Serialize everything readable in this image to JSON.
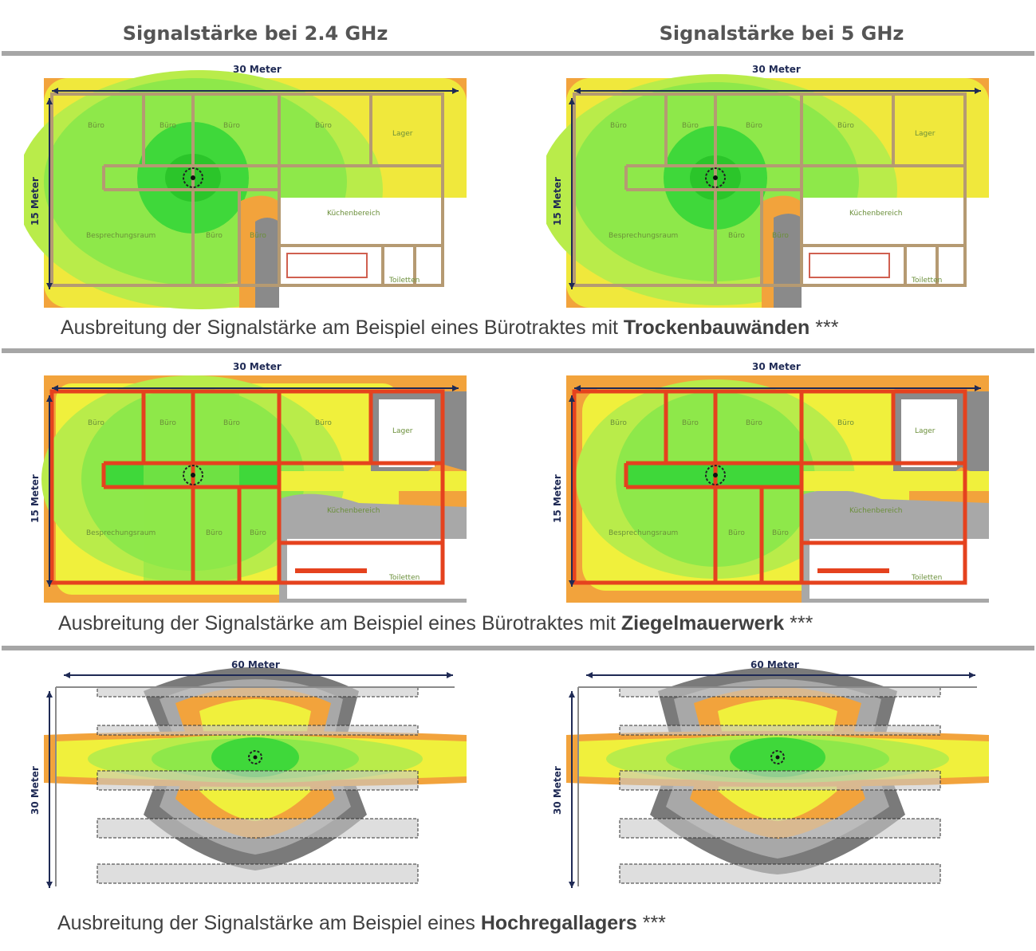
{
  "headers": {
    "left": "Signalstärke bei 2.4 GHz",
    "right": "Signalstärke bei 5 GHz"
  },
  "rows": [
    {
      "caption_prefix": "Ausbreitung der Signalstärke am Beispiel eines Bürotraktes mit ",
      "caption_bold": "Trockenbauwänden",
      "caption_suffix": " ***",
      "width_label": "30 Meter",
      "height_label": "15 Meter",
      "rooms": {
        "buero": "Büro",
        "lager": "Lager",
        "kueche": "Küchenbereich",
        "besprechung": "Besprechungsraum",
        "toiletten": "Toiletten"
      }
    },
    {
      "caption_prefix": "Ausbreitung der Signalstärke am Beispiel eines Bürotraktes mit ",
      "caption_bold": "Ziegelmauerwerk",
      "caption_suffix": " ***",
      "width_label": "30 Meter",
      "height_label": "15 Meter",
      "rooms": {
        "buero": "Büro",
        "lager": "Lager",
        "kueche": "Küchenbereich",
        "besprechung": "Besprechungsraum",
        "toiletten": "Toiletten"
      }
    },
    {
      "caption_prefix": "Ausbreitung der Signalstärke am Beispiel eines ",
      "caption_bold": "Hochregallagers",
      "caption_suffix": " ***",
      "width_label": "60 Meter",
      "height_label": "30 Meter"
    }
  ],
  "colors": {
    "strong": "#3fd83a",
    "good": "#8ee84a",
    "medium": "#f0f03c",
    "weak": "#f2a33c",
    "none_dark": "#7a7a7a",
    "none_light": "#a8a8a8",
    "drywall": "#b59a72",
    "brick": "#e5421e",
    "dimension": "#1f2a55"
  }
}
